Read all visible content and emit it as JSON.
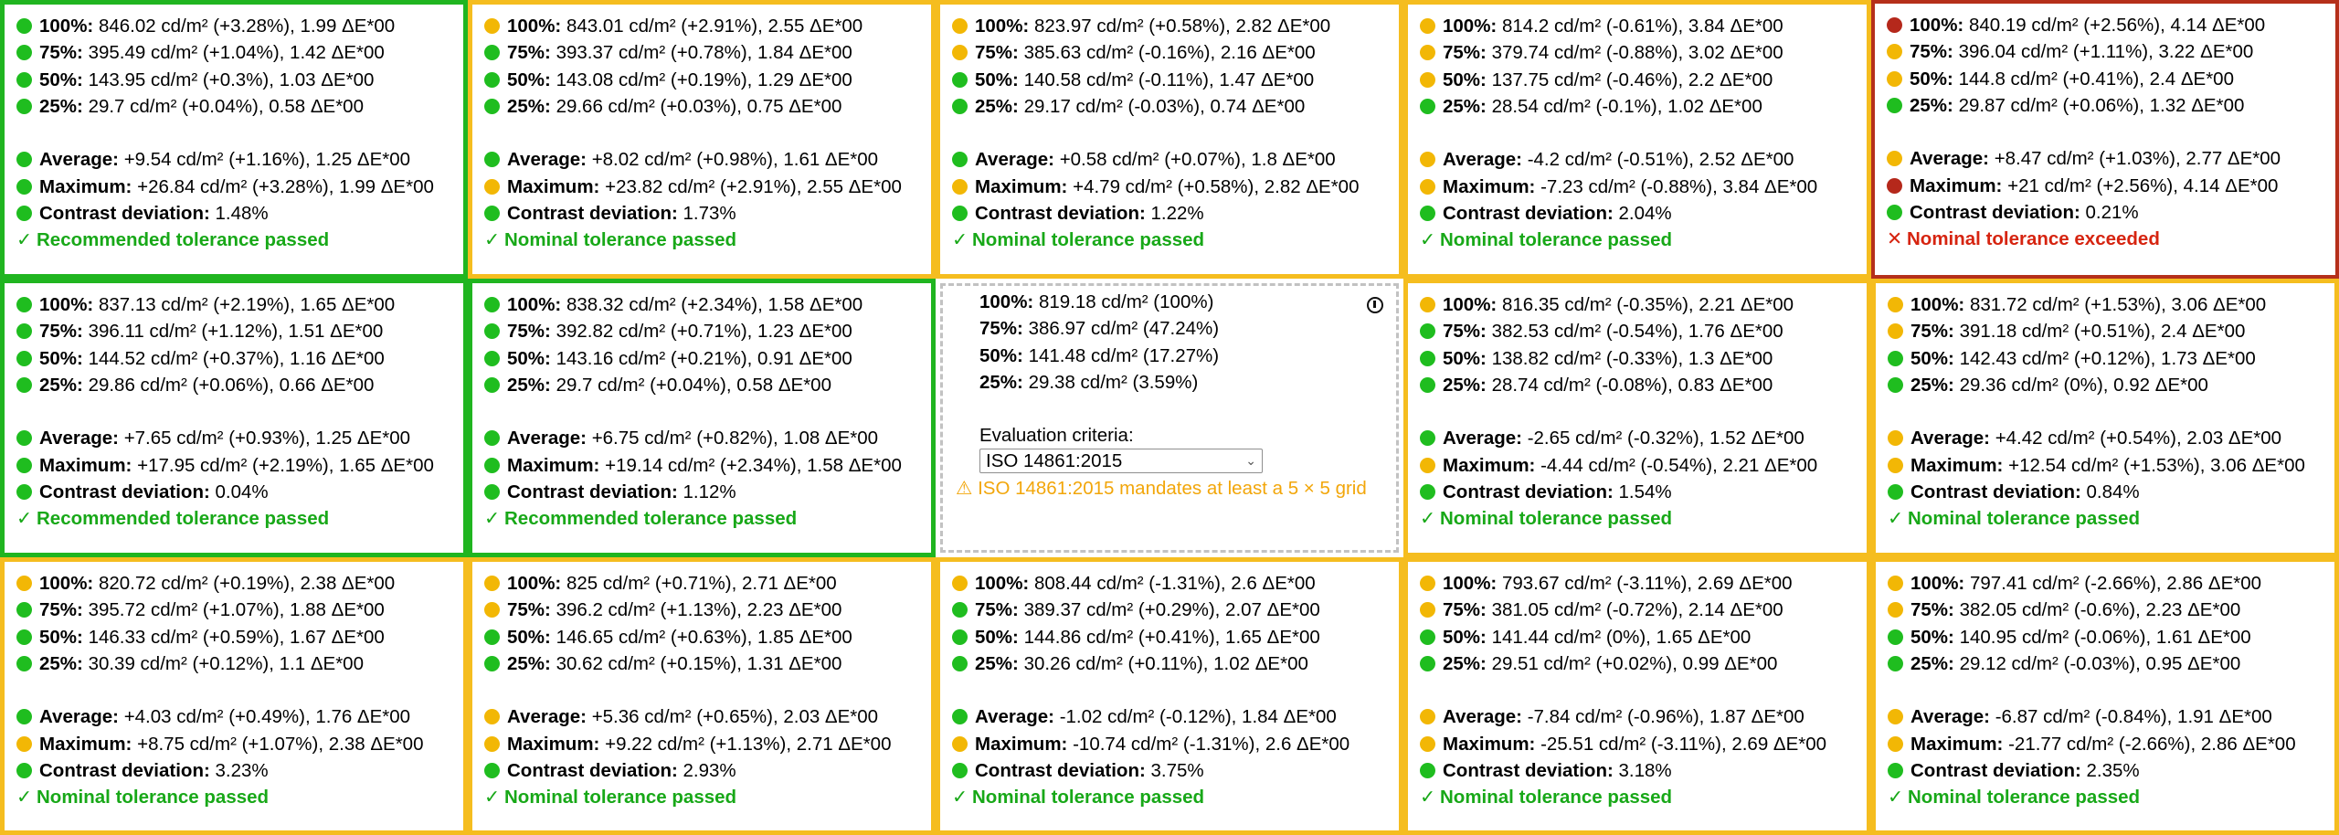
{
  "cells": [
    {
      "border": "good",
      "rows": [
        {
          "dot": "green",
          "label": "100%:",
          "text": "846.02 cd/m² (+3.28%), 1.99 ΔE*00"
        },
        {
          "dot": "green",
          "label": "75%:",
          "text": "395.49 cd/m² (+1.04%), 1.42 ΔE*00"
        },
        {
          "dot": "green",
          "label": "50%:",
          "text": "143.95 cd/m² (+0.3%), 1.03 ΔE*00"
        },
        {
          "dot": "green",
          "label": "25%:",
          "text": "29.7 cd/m² (+0.04%), 0.58 ΔE*00"
        },
        {
          "dot": "green",
          "label": "Average:",
          "text": "+9.54 cd/m² (+1.16%), 1.25 ΔE*00"
        },
        {
          "dot": "green",
          "label": "Maximum:",
          "text": "+26.84 cd/m² (+3.28%), 1.99 ΔE*00"
        },
        {
          "dot": "green",
          "label": "Contrast deviation:",
          "text": "1.48%"
        }
      ],
      "status": {
        "mark": "✓",
        "text": "Recommended tolerance passed",
        "kind": "pass"
      }
    },
    {
      "border": "warn",
      "rows": [
        {
          "dot": "yellow",
          "label": "100%:",
          "text": "843.01 cd/m² (+2.91%), 2.55 ΔE*00"
        },
        {
          "dot": "green",
          "label": "75%:",
          "text": "393.37 cd/m² (+0.78%), 1.84 ΔE*00"
        },
        {
          "dot": "green",
          "label": "50%:",
          "text": "143.08 cd/m² (+0.19%), 1.29 ΔE*00"
        },
        {
          "dot": "green",
          "label": "25%:",
          "text": "29.66 cd/m² (+0.03%), 0.75 ΔE*00"
        },
        {
          "dot": "green",
          "label": "Average:",
          "text": "+8.02 cd/m² (+0.98%), 1.61 ΔE*00"
        },
        {
          "dot": "yellow",
          "label": "Maximum:",
          "text": "+23.82 cd/m² (+2.91%), 2.55 ΔE*00"
        },
        {
          "dot": "green",
          "label": "Contrast deviation:",
          "text": "1.73%"
        }
      ],
      "status": {
        "mark": "✓",
        "text": "Nominal tolerance passed",
        "kind": "pass"
      }
    },
    {
      "border": "warn",
      "rows": [
        {
          "dot": "yellow",
          "label": "100%:",
          "text": "823.97 cd/m² (+0.58%), 2.82 ΔE*00"
        },
        {
          "dot": "yellow",
          "label": "75%:",
          "text": "385.63 cd/m² (-0.16%), 2.16 ΔE*00"
        },
        {
          "dot": "green",
          "label": "50%:",
          "text": "140.58 cd/m² (-0.11%), 1.47 ΔE*00"
        },
        {
          "dot": "green",
          "label": "25%:",
          "text": "29.17 cd/m² (-0.03%), 0.74 ΔE*00"
        },
        {
          "dot": "green",
          "label": "Average:",
          "text": "+0.58 cd/m² (+0.07%), 1.8 ΔE*00"
        },
        {
          "dot": "yellow",
          "label": "Maximum:",
          "text": "+4.79 cd/m² (+0.58%), 2.82 ΔE*00"
        },
        {
          "dot": "green",
          "label": "Contrast deviation:",
          "text": "1.22%"
        }
      ],
      "status": {
        "mark": "✓",
        "text": "Nominal tolerance passed",
        "kind": "pass"
      }
    },
    {
      "border": "warn",
      "rows": [
        {
          "dot": "yellow",
          "label": "100%:",
          "text": "814.2 cd/m² (-0.61%), 3.84 ΔE*00"
        },
        {
          "dot": "yellow",
          "label": "75%:",
          "text": "379.74 cd/m² (-0.88%), 3.02 ΔE*00"
        },
        {
          "dot": "yellow",
          "label": "50%:",
          "text": "137.75 cd/m² (-0.46%), 2.2 ΔE*00"
        },
        {
          "dot": "green",
          "label": "25%:",
          "text": "28.54 cd/m² (-0.1%), 1.02 ΔE*00"
        },
        {
          "dot": "yellow",
          "label": "Average:",
          "text": "-4.2 cd/m² (-0.51%), 2.52 ΔE*00"
        },
        {
          "dot": "yellow",
          "label": "Maximum:",
          "text": "-7.23 cd/m² (-0.88%), 3.84 ΔE*00"
        },
        {
          "dot": "green",
          "label": "Contrast deviation:",
          "text": "2.04%"
        }
      ],
      "status": {
        "mark": "✓",
        "text": "Nominal tolerance passed",
        "kind": "pass"
      }
    },
    {
      "border": "bad",
      "rows": [
        {
          "dot": "red",
          "label": "100%:",
          "text": "840.19 cd/m² (+2.56%), 4.14 ΔE*00"
        },
        {
          "dot": "yellow",
          "label": "75%:",
          "text": "396.04 cd/m² (+1.11%), 3.22 ΔE*00"
        },
        {
          "dot": "yellow",
          "label": "50%:",
          "text": "144.8 cd/m² (+0.41%), 2.4 ΔE*00"
        },
        {
          "dot": "green",
          "label": "25%:",
          "text": "29.87 cd/m² (+0.06%), 1.32 ΔE*00"
        },
        {
          "dot": "yellow",
          "label": "Average:",
          "text": "+8.47 cd/m² (+1.03%), 2.77 ΔE*00"
        },
        {
          "dot": "red",
          "label": "Maximum:",
          "text": "+21 cd/m² (+2.56%), 4.14 ΔE*00"
        },
        {
          "dot": "green",
          "label": "Contrast deviation:",
          "text": "0.21%"
        }
      ],
      "status": {
        "mark": "✕",
        "text": "Nominal tolerance exceeded",
        "kind": "fail"
      }
    },
    {
      "border": "good",
      "rows": [
        {
          "dot": "green",
          "label": "100%:",
          "text": "837.13 cd/m² (+2.19%), 1.65 ΔE*00"
        },
        {
          "dot": "green",
          "label": "75%:",
          "text": "396.11 cd/m² (+1.12%), 1.51 ΔE*00"
        },
        {
          "dot": "green",
          "label": "50%:",
          "text": "144.52 cd/m² (+0.37%), 1.16 ΔE*00"
        },
        {
          "dot": "green",
          "label": "25%:",
          "text": "29.86 cd/m² (+0.06%), 0.66 ΔE*00"
        },
        {
          "dot": "green",
          "label": "Average:",
          "text": "+7.65 cd/m² (+0.93%), 1.25 ΔE*00"
        },
        {
          "dot": "green",
          "label": "Maximum:",
          "text": "+17.95 cd/m² (+2.19%), 1.65 ΔE*00"
        },
        {
          "dot": "green",
          "label": "Contrast deviation:",
          "text": "0.04%"
        }
      ],
      "status": {
        "mark": "✓",
        "text": "Recommended tolerance passed",
        "kind": "pass"
      }
    },
    {
      "border": "good",
      "rows": [
        {
          "dot": "green",
          "label": "100%:",
          "text": "838.32 cd/m² (+2.34%), 1.58 ΔE*00"
        },
        {
          "dot": "green",
          "label": "75%:",
          "text": "392.82 cd/m² (+0.71%), 1.23 ΔE*00"
        },
        {
          "dot": "green",
          "label": "50%:",
          "text": "143.16 cd/m² (+0.21%), 0.91 ΔE*00"
        },
        {
          "dot": "green",
          "label": "25%:",
          "text": "29.7 cd/m² (+0.04%), 0.58 ΔE*00"
        },
        {
          "dot": "green",
          "label": "Average:",
          "text": "+6.75 cd/m² (+0.82%), 1.08 ΔE*00"
        },
        {
          "dot": "green",
          "label": "Maximum:",
          "text": "+19.14 cd/m² (+2.34%), 1.58 ΔE*00"
        },
        {
          "dot": "green",
          "label": "Contrast deviation:",
          "text": "1.12%"
        }
      ],
      "status": {
        "mark": "✓",
        "text": "Recommended tolerance passed",
        "kind": "pass"
      }
    },
    {
      "reference": true
    },
    {
      "border": "warn",
      "rows": [
        {
          "dot": "yellow",
          "label": "100%:",
          "text": "816.35 cd/m² (-0.35%), 2.21 ΔE*00"
        },
        {
          "dot": "green",
          "label": "75%:",
          "text": "382.53 cd/m² (-0.54%), 1.76 ΔE*00"
        },
        {
          "dot": "green",
          "label": "50%:",
          "text": "138.82 cd/m² (-0.33%), 1.3 ΔE*00"
        },
        {
          "dot": "green",
          "label": "25%:",
          "text": "28.74 cd/m² (-0.08%), 0.83 ΔE*00"
        },
        {
          "dot": "green",
          "label": "Average:",
          "text": "-2.65 cd/m² (-0.32%), 1.52 ΔE*00"
        },
        {
          "dot": "yellow",
          "label": "Maximum:",
          "text": "-4.44 cd/m² (-0.54%), 2.21 ΔE*00"
        },
        {
          "dot": "green",
          "label": "Contrast deviation:",
          "text": "1.54%"
        }
      ],
      "status": {
        "mark": "✓",
        "text": "Nominal tolerance passed",
        "kind": "pass"
      }
    },
    {
      "border": "warn",
      "rows": [
        {
          "dot": "yellow",
          "label": "100%:",
          "text": "831.72 cd/m² (+1.53%), 3.06 ΔE*00"
        },
        {
          "dot": "yellow",
          "label": "75%:",
          "text": "391.18 cd/m² (+0.51%), 2.4 ΔE*00"
        },
        {
          "dot": "green",
          "label": "50%:",
          "text": "142.43 cd/m² (+0.12%), 1.73 ΔE*00"
        },
        {
          "dot": "green",
          "label": "25%:",
          "text": "29.36 cd/m² (0%), 0.92 ΔE*00"
        },
        {
          "dot": "yellow",
          "label": "Average:",
          "text": "+4.42 cd/m² (+0.54%), 2.03 ΔE*00"
        },
        {
          "dot": "yellow",
          "label": "Maximum:",
          "text": "+12.54 cd/m² (+1.53%), 3.06 ΔE*00"
        },
        {
          "dot": "green",
          "label": "Contrast deviation:",
          "text": "0.84%"
        }
      ],
      "status": {
        "mark": "✓",
        "text": "Nominal tolerance passed",
        "kind": "pass"
      }
    },
    {
      "border": "warn",
      "rows": [
        {
          "dot": "yellow",
          "label": "100%:",
          "text": "820.72 cd/m² (+0.19%), 2.38 ΔE*00"
        },
        {
          "dot": "green",
          "label": "75%:",
          "text": "395.72 cd/m² (+1.07%), 1.88 ΔE*00"
        },
        {
          "dot": "green",
          "label": "50%:",
          "text": "146.33 cd/m² (+0.59%), 1.67 ΔE*00"
        },
        {
          "dot": "green",
          "label": "25%:",
          "text": "30.39 cd/m² (+0.12%), 1.1 ΔE*00"
        },
        {
          "dot": "green",
          "label": "Average:",
          "text": "+4.03 cd/m² (+0.49%), 1.76 ΔE*00"
        },
        {
          "dot": "yellow",
          "label": "Maximum:",
          "text": "+8.75 cd/m² (+1.07%), 2.38 ΔE*00"
        },
        {
          "dot": "green",
          "label": "Contrast deviation:",
          "text": "3.23%"
        }
      ],
      "status": {
        "mark": "✓",
        "text": "Nominal tolerance passed",
        "kind": "pass"
      }
    },
    {
      "border": "warn",
      "rows": [
        {
          "dot": "yellow",
          "label": "100%:",
          "text": "825 cd/m² (+0.71%), 2.71 ΔE*00"
        },
        {
          "dot": "yellow",
          "label": "75%:",
          "text": "396.2 cd/m² (+1.13%), 2.23 ΔE*00"
        },
        {
          "dot": "green",
          "label": "50%:",
          "text": "146.65 cd/m² (+0.63%), 1.85 ΔE*00"
        },
        {
          "dot": "green",
          "label": "25%:",
          "text": "30.62 cd/m² (+0.15%), 1.31 ΔE*00"
        },
        {
          "dot": "yellow",
          "label": "Average:",
          "text": "+5.36 cd/m² (+0.65%), 2.03 ΔE*00"
        },
        {
          "dot": "yellow",
          "label": "Maximum:",
          "text": "+9.22 cd/m² (+1.13%), 2.71 ΔE*00"
        },
        {
          "dot": "green",
          "label": "Contrast deviation:",
          "text": "2.93%"
        }
      ],
      "status": {
        "mark": "✓",
        "text": "Nominal tolerance passed",
        "kind": "pass"
      }
    },
    {
      "border": "warn",
      "rows": [
        {
          "dot": "yellow",
          "label": "100%:",
          "text": "808.44 cd/m² (-1.31%), 2.6 ΔE*00"
        },
        {
          "dot": "green",
          "label": "75%:",
          "text": "389.37 cd/m² (+0.29%), 2.07 ΔE*00"
        },
        {
          "dot": "green",
          "label": "50%:",
          "text": "144.86 cd/m² (+0.41%), 1.65 ΔE*00"
        },
        {
          "dot": "green",
          "label": "25%:",
          "text": "30.26 cd/m² (+0.11%), 1.02 ΔE*00"
        },
        {
          "dot": "green",
          "label": "Average:",
          "text": "-1.02 cd/m² (-0.12%), 1.84 ΔE*00"
        },
        {
          "dot": "yellow",
          "label": "Maximum:",
          "text": "-10.74 cd/m² (-1.31%), 2.6 ΔE*00"
        },
        {
          "dot": "green",
          "label": "Contrast deviation:",
          "text": "3.75%"
        }
      ],
      "status": {
        "mark": "✓",
        "text": "Nominal tolerance passed",
        "kind": "pass"
      }
    },
    {
      "border": "warn",
      "rows": [
        {
          "dot": "yellow",
          "label": "100%:",
          "text": "793.67 cd/m² (-3.11%), 2.69 ΔE*00"
        },
        {
          "dot": "yellow",
          "label": "75%:",
          "text": "381.05 cd/m² (-0.72%), 2.14 ΔE*00"
        },
        {
          "dot": "green",
          "label": "50%:",
          "text": "141.44 cd/m² (0%), 1.65 ΔE*00"
        },
        {
          "dot": "green",
          "label": "25%:",
          "text": "29.51 cd/m² (+0.02%), 0.99 ΔE*00"
        },
        {
          "dot": "yellow",
          "label": "Average:",
          "text": "-7.84 cd/m² (-0.96%), 1.87 ΔE*00"
        },
        {
          "dot": "yellow",
          "label": "Maximum:",
          "text": "-25.51 cd/m² (-3.11%), 2.69 ΔE*00"
        },
        {
          "dot": "green",
          "label": "Contrast deviation:",
          "text": "3.18%"
        }
      ],
      "status": {
        "mark": "✓",
        "text": "Nominal tolerance passed",
        "kind": "pass"
      }
    },
    {
      "border": "warn",
      "rows": [
        {
          "dot": "yellow",
          "label": "100%:",
          "text": "797.41 cd/m² (-2.66%), 2.86 ΔE*00"
        },
        {
          "dot": "yellow",
          "label": "75%:",
          "text": "382.05 cd/m² (-0.6%), 2.23 ΔE*00"
        },
        {
          "dot": "green",
          "label": "50%:",
          "text": "140.95 cd/m² (-0.06%), 1.61 ΔE*00"
        },
        {
          "dot": "green",
          "label": "25%:",
          "text": "29.12 cd/m² (-0.03%), 0.95 ΔE*00"
        },
        {
          "dot": "yellow",
          "label": "Average:",
          "text": "-6.87 cd/m² (-0.84%), 1.91 ΔE*00"
        },
        {
          "dot": "yellow",
          "label": "Maximum:",
          "text": "-21.77 cd/m² (-2.66%), 2.86 ΔE*00"
        },
        {
          "dot": "green",
          "label": "Contrast deviation:",
          "text": "2.35%"
        }
      ],
      "status": {
        "mark": "✓",
        "text": "Nominal tolerance passed",
        "kind": "pass"
      }
    }
  ],
  "reference": {
    "rows": [
      {
        "label": "100%:",
        "text": "819.18 cd/m² (100%)"
      },
      {
        "label": "75%:",
        "text": "386.97 cd/m² (47.24%)"
      },
      {
        "label": "50%:",
        "text": "141.48 cd/m² (17.27%)"
      },
      {
        "label": "25%:",
        "text": "29.38 cd/m² (3.59%)"
      }
    ],
    "eval_label": "Evaluation criteria:",
    "eval_selected": "ISO 14861:2015",
    "warning_icon": "⚠",
    "warning_text": "ISO 14861:2015 mandates at least a 5 × 5 grid",
    "info_icon": "info-icon"
  },
  "colors": {
    "green": "#1fbd1f",
    "yellow": "#f2b705",
    "red": "#b5281b",
    "pass_text": "#18a818",
    "fail_text": "#d62410",
    "warn_border": "#f5bd1f",
    "good_border": "#20b520",
    "bad_border": "#b5301b"
  }
}
